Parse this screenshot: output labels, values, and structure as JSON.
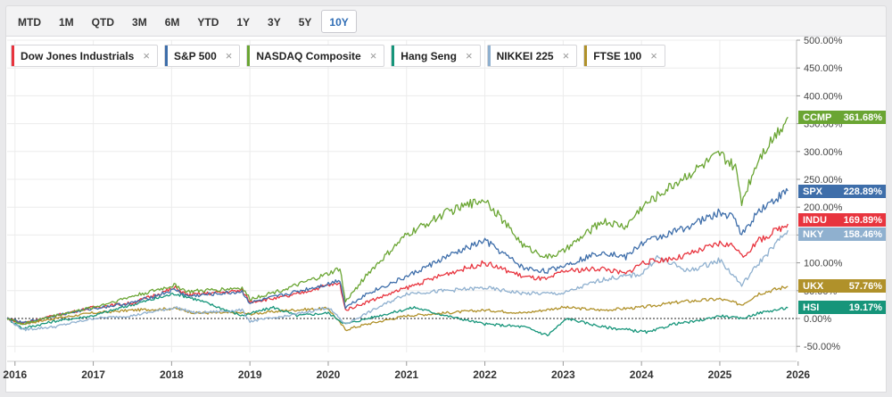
{
  "toolbar": {
    "ranges": [
      "MTD",
      "1M",
      "QTD",
      "3M",
      "6M",
      "YTD",
      "1Y",
      "3Y",
      "5Y",
      "10Y"
    ],
    "active": "10Y"
  },
  "colors": {
    "INDU": "#e8343e",
    "SPX": "#3e6eaa",
    "CCMP": "#6aa533",
    "HSI": "#16957a",
    "NKY": "#8fb0cf",
    "UKX": "#b0912a"
  },
  "chart_data": {
    "type": "line",
    "title": "",
    "xlabel": "",
    "ylabel": "",
    "ylim": [
      -60,
      500
    ],
    "y_ticks": [
      -50,
      0,
      50,
      100,
      150,
      200,
      250,
      300,
      350,
      400,
      450,
      500
    ],
    "y_tick_labels": [
      "-50.00%",
      "0.00%",
      "50.00%",
      "100.00%",
      "150.00%",
      "200.00%",
      "250.00%",
      "300.00%",
      "350.00%",
      "400.00%",
      "450.00%",
      "500.00%"
    ],
    "x_range": [
      2015.9,
      2025.98
    ],
    "x_ticks": [
      2016,
      2017,
      2018,
      2019,
      2020,
      2021,
      2022,
      2023,
      2024,
      2025,
      2026
    ],
    "x_tick_labels": [
      "2016",
      "2017",
      "2018",
      "2019",
      "2020",
      "2021",
      "2022",
      "2023",
      "2024",
      "2025",
      "2026"
    ],
    "baseline": 0,
    "legend_position": "top-left",
    "series": [
      {
        "name": "Dow Jones Industrials",
        "code": "INDU",
        "last_label": "169.89%",
        "x": [
          2015.9,
          2016.1,
          2016.5,
          2017.0,
          2017.5,
          2018.05,
          2018.2,
          2018.9,
          2019.0,
          2019.5,
          2020.0,
          2020.15,
          2020.22,
          2020.5,
          2021.0,
          2021.5,
          2022.0,
          2022.5,
          2022.8,
          2023.0,
          2023.5,
          2023.8,
          2024.0,
          2024.5,
          2025.0,
          2025.2,
          2025.28,
          2025.5,
          2025.87
        ],
        "values": [
          0,
          -8,
          5,
          20,
          28,
          55,
          42,
          50,
          30,
          40,
          60,
          62,
          15,
          30,
          55,
          80,
          100,
          75,
          70,
          85,
          90,
          80,
          100,
          110,
          135,
          130,
          110,
          140,
          169.89
        ]
      },
      {
        "name": "S&P 500",
        "code": "SPX",
        "last_label": "228.89%",
        "x": [
          2015.9,
          2016.1,
          2016.5,
          2017.0,
          2017.5,
          2018.05,
          2018.2,
          2018.9,
          2019.0,
          2019.5,
          2020.0,
          2020.15,
          2020.22,
          2020.5,
          2021.0,
          2021.5,
          2022.0,
          2022.5,
          2022.8,
          2023.0,
          2023.5,
          2023.8,
          2024.0,
          2024.5,
          2025.0,
          2025.2,
          2025.28,
          2025.5,
          2025.87
        ],
        "values": [
          0,
          -8,
          5,
          18,
          28,
          52,
          40,
          48,
          28,
          45,
          62,
          70,
          20,
          45,
          75,
          110,
          140,
          90,
          85,
          95,
          120,
          110,
          135,
          160,
          190,
          180,
          150,
          195,
          228.89
        ]
      },
      {
        "name": "NASDAQ Composite",
        "code": "CCMP",
        "last_label": "361.68%",
        "x": [
          2015.9,
          2016.1,
          2016.5,
          2017.0,
          2017.5,
          2018.05,
          2018.2,
          2018.9,
          2019.0,
          2019.5,
          2020.0,
          2020.15,
          2020.22,
          2020.5,
          2021.0,
          2021.5,
          2022.0,
          2022.5,
          2022.8,
          2023.0,
          2023.5,
          2023.8,
          2024.0,
          2024.5,
          2025.0,
          2025.2,
          2025.28,
          2025.5,
          2025.87
        ],
        "values": [
          0,
          -10,
          5,
          20,
          40,
          60,
          48,
          55,
          35,
          55,
          80,
          90,
          30,
          80,
          150,
          190,
          215,
          130,
          110,
          120,
          175,
          165,
          200,
          250,
          295,
          270,
          210,
          290,
          361.68
        ]
      },
      {
        "name": "Hang Seng",
        "code": "HSI",
        "last_label": "19.17%",
        "x": [
          2015.9,
          2016.1,
          2016.5,
          2017.0,
          2017.5,
          2018.05,
          2018.3,
          2018.9,
          2019.3,
          2019.6,
          2020.0,
          2020.22,
          2020.5,
          2021.1,
          2021.5,
          2022.0,
          2022.5,
          2022.8,
          2023.05,
          2023.5,
          2024.1,
          2024.4,
          2024.7,
          2025.0,
          2025.28,
          2025.5,
          2025.87
        ],
        "values": [
          0,
          -18,
          -5,
          5,
          25,
          45,
          35,
          5,
          20,
          5,
          10,
          -10,
          0,
          20,
          5,
          -10,
          -15,
          -30,
          0,
          -15,
          -25,
          -10,
          -5,
          5,
          0,
          10,
          19.17
        ]
      },
      {
        "name": "NIKKEI 225",
        "code": "NKY",
        "last_label": "158.46%",
        "x": [
          2015.9,
          2016.1,
          2016.5,
          2017.0,
          2017.5,
          2018.05,
          2018.3,
          2018.9,
          2019.0,
          2019.5,
          2020.0,
          2020.22,
          2020.5,
          2021.0,
          2021.5,
          2022.0,
          2022.5,
          2023.0,
          2023.5,
          2024.0,
          2024.2,
          2024.6,
          2025.0,
          2025.28,
          2025.5,
          2025.87
        ],
        "values": [
          0,
          -20,
          -15,
          0,
          5,
          20,
          10,
          15,
          -5,
          5,
          20,
          -10,
          10,
          45,
          50,
          55,
          45,
          45,
          70,
          80,
          110,
          85,
          105,
          60,
          100,
          158.46
        ]
      },
      {
        "name": "FTSE 100",
        "code": "UKX",
        "last_label": "57.76%",
        "x": [
          2015.9,
          2016.1,
          2016.5,
          2017.0,
          2017.5,
          2018.05,
          2018.3,
          2018.9,
          2019.0,
          2019.5,
          2020.0,
          2020.22,
          2020.5,
          2021.0,
          2021.5,
          2022.0,
          2022.5,
          2023.0,
          2023.5,
          2024.0,
          2024.5,
          2025.0,
          2025.28,
          2025.5,
          2025.87
        ],
        "values": [
          0,
          -10,
          0,
          10,
          15,
          18,
          10,
          10,
          8,
          15,
          18,
          -20,
          -10,
          5,
          10,
          15,
          10,
          20,
          15,
          20,
          30,
          35,
          25,
          45,
          57.76
        ]
      }
    ],
    "end_labels_order": [
      "CCMP",
      "SPX",
      "INDU",
      "NKY",
      "UKX",
      "HSI"
    ]
  }
}
